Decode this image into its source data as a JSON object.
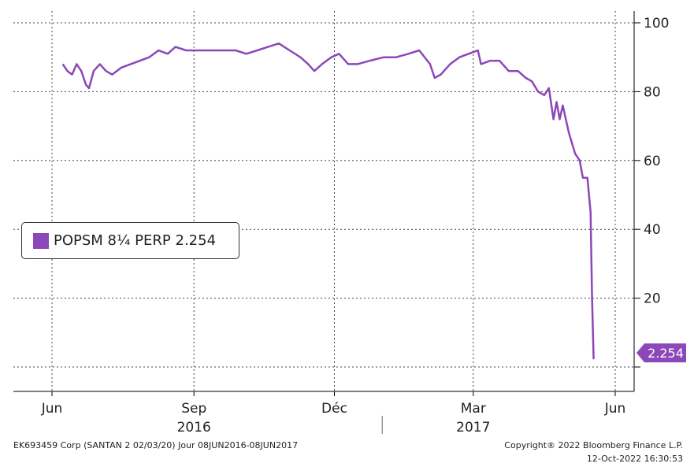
{
  "chart_data": {
    "type": "line",
    "title": "",
    "xlabel": "",
    "ylabel": "",
    "ylim": [
      -4,
      102
    ],
    "y_ticks": [
      20,
      40,
      60,
      80,
      100
    ],
    "grid": true,
    "legend_position": "left-middle",
    "x_ticks": [
      {
        "label": "Jun",
        "year": "",
        "date": "2016-06-01"
      },
      {
        "label": "Sep",
        "year": "2016",
        "date": "2016-09-01"
      },
      {
        "label": "Déc",
        "year": "",
        "date": "2016-12-01"
      },
      {
        "label": "Mar",
        "year": "2017",
        "date": "2017-03-01"
      },
      {
        "label": "Jun",
        "year": "",
        "date": "2017-06-01"
      }
    ],
    "series": [
      {
        "name": "POPSM 8¼ PERP 2.254",
        "color": "#8c47b8",
        "last_value": "2.254",
        "points": [
          [
            "2016-06-08",
            88
          ],
          [
            "2016-06-11",
            86
          ],
          [
            "2016-06-14",
            85
          ],
          [
            "2016-06-17",
            88
          ],
          [
            "2016-06-20",
            86
          ],
          [
            "2016-06-23",
            82
          ],
          [
            "2016-06-25",
            81
          ],
          [
            "2016-06-28",
            86
          ],
          [
            "2016-07-02",
            88
          ],
          [
            "2016-07-06",
            86
          ],
          [
            "2016-07-10",
            85
          ],
          [
            "2016-07-16",
            87
          ],
          [
            "2016-07-22",
            88
          ],
          [
            "2016-07-28",
            89
          ],
          [
            "2016-08-03",
            90
          ],
          [
            "2016-08-09",
            92
          ],
          [
            "2016-08-15",
            91
          ],
          [
            "2016-08-20",
            93
          ],
          [
            "2016-08-27",
            92
          ],
          [
            "2016-09-03",
            92
          ],
          [
            "2016-09-12",
            92
          ],
          [
            "2016-09-20",
            92
          ],
          [
            "2016-09-28",
            92
          ],
          [
            "2016-10-05",
            91
          ],
          [
            "2016-10-12",
            92
          ],
          [
            "2016-10-19",
            93
          ],
          [
            "2016-10-26",
            94
          ],
          [
            "2016-11-02",
            92
          ],
          [
            "2016-11-09",
            90
          ],
          [
            "2016-11-14",
            88
          ],
          [
            "2016-11-18",
            86
          ],
          [
            "2016-11-23",
            88
          ],
          [
            "2016-11-29",
            90
          ],
          [
            "2016-12-04",
            91
          ],
          [
            "2016-12-10",
            88
          ],
          [
            "2016-12-16",
            88
          ],
          [
            "2016-12-24",
            89
          ],
          [
            "2017-01-02",
            90
          ],
          [
            "2017-01-10",
            90
          ],
          [
            "2017-01-18",
            91
          ],
          [
            "2017-01-25",
            92
          ],
          [
            "2017-02-01",
            88
          ],
          [
            "2017-02-04",
            84
          ],
          [
            "2017-02-08",
            85
          ],
          [
            "2017-02-14",
            88
          ],
          [
            "2017-02-20",
            90
          ],
          [
            "2017-02-26",
            91
          ],
          [
            "2017-03-04",
            92
          ],
          [
            "2017-03-06",
            88
          ],
          [
            "2017-03-12",
            89
          ],
          [
            "2017-03-18",
            89
          ],
          [
            "2017-03-24",
            86
          ],
          [
            "2017-03-30",
            86
          ],
          [
            "2017-04-04",
            84
          ],
          [
            "2017-04-08",
            83
          ],
          [
            "2017-04-12",
            80
          ],
          [
            "2017-04-16",
            79
          ],
          [
            "2017-04-19",
            81
          ],
          [
            "2017-04-22",
            72
          ],
          [
            "2017-04-24",
            77
          ],
          [
            "2017-04-26",
            72
          ],
          [
            "2017-04-28",
            76
          ],
          [
            "2017-05-02",
            68
          ],
          [
            "2017-05-06",
            62
          ],
          [
            "2017-05-09",
            60
          ],
          [
            "2017-05-11",
            55
          ],
          [
            "2017-05-14",
            55
          ],
          [
            "2017-05-16",
            45
          ],
          [
            "2017-05-17",
            20
          ],
          [
            "2017-05-18",
            2.254
          ]
        ]
      }
    ]
  },
  "footer": {
    "left": "EK693459 Corp (SANTAN 2 02/03/20) Jour 08JUN2016-08JUN2017",
    "copyright": "Copyright® 2022 Bloomberg Finance L.P.",
    "timestamp": "12-Oct-2022 16:30:53"
  }
}
